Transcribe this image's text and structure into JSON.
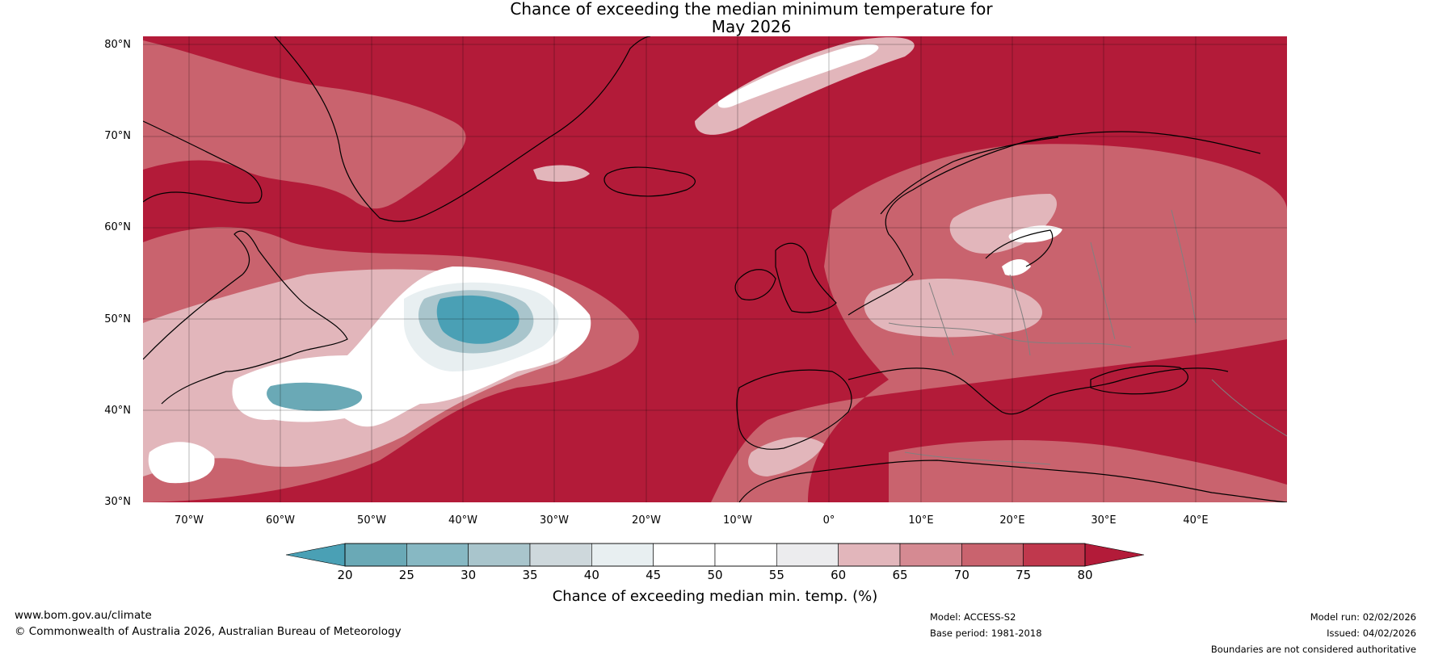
{
  "title": {
    "line1": "Chance of exceeding the median minimum temperature for",
    "line2": "May 2026"
  },
  "map": {
    "lat_labels": [
      "80°N",
      "70°N",
      "60°N",
      "50°N",
      "40°N",
      "30°N"
    ],
    "lon_labels": [
      "70°W",
      "60°W",
      "50°W",
      "40°W",
      "30°W",
      "20°W",
      "10°W",
      "0°",
      "10°E",
      "20°E",
      "30°E",
      "40°E"
    ],
    "colors": {
      "above_80": "#b31b39",
      "p75_80": "#c0384d",
      "p70_75": "#c9636e",
      "p65_70": "#d58a92",
      "p60_65": "#e2b6bb",
      "p55_60": "#ececee",
      "p45_55": "#ffffff",
      "p40_45": "#e8eff1",
      "p35_40": "#ced8dc",
      "p30_35": "#a9c5cc",
      "p25_30": "#87b8c3",
      "p20_25": "#6aa9b6",
      "below_20": "#4aa0b5",
      "coastline": "#000000",
      "borders": "#808080"
    }
  },
  "colorbar": {
    "ticks": [
      "20",
      "25",
      "30",
      "35",
      "40",
      "45",
      "50",
      "55",
      "60",
      "65",
      "70",
      "75",
      "80"
    ],
    "bin_colors": [
      "#6aa9b6",
      "#87b8c3",
      "#a9c5cc",
      "#ced8dc",
      "#e8eff1",
      "#ffffff",
      "#ffffff",
      "#ececee",
      "#e2b6bb",
      "#d58a92",
      "#c9636e",
      "#c0384d"
    ],
    "low_color": "#4aa0b5",
    "high_color": "#b31b39",
    "label": "Chance of exceeding median min. temp. (%)"
  },
  "footer": {
    "website": "www.bom.gov.au/climate",
    "copyright": "© Commonwealth of Australia 2026, Australian Bureau of Meteorology",
    "model": "Model: ACCESS-S2",
    "base_period": "Base period: 1981-2018",
    "model_run": "Model run: 02/02/2026",
    "issued": "Issued: 04/02/2026",
    "disclaimer": "Boundaries are not considered authoritative"
  }
}
